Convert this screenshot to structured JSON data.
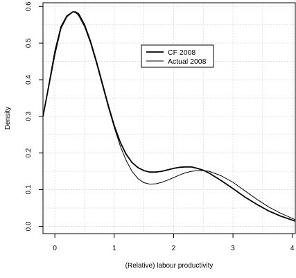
{
  "chart_data": {
    "type": "line",
    "title": "",
    "xlabel": "(Relative) labour productivity",
    "ylabel": "Density",
    "xlim": [
      -0.2,
      4.05
    ],
    "ylim": [
      -0.02,
      0.61
    ],
    "grid": true,
    "legend_position": "top-center",
    "x_ticks": [
      0,
      1,
      2,
      3,
      4
    ],
    "x_tick_labels": [
      "0",
      "1",
      "2",
      "3",
      "4"
    ],
    "y_ticks": [
      0.0,
      0.1,
      0.2,
      0.3,
      0.4,
      0.5,
      0.6
    ],
    "y_tick_labels": [
      "0.0",
      "0.1",
      "0.2",
      "0.3",
      "0.4",
      "0.5",
      "0.6"
    ],
    "series": [
      {
        "name": "CF 2008",
        "line_weight": "thick",
        "x": [
          -0.2,
          0.0,
          0.1,
          0.2,
          0.3,
          0.35,
          0.4,
          0.5,
          0.6,
          0.7,
          0.8,
          0.9,
          1.0,
          1.1,
          1.2,
          1.3,
          1.4,
          1.5,
          1.6,
          1.7,
          1.8,
          1.9,
          2.0,
          2.1,
          2.2,
          2.3,
          2.4,
          2.5,
          2.6,
          2.8,
          3.0,
          3.2,
          3.4,
          3.6,
          3.8,
          4.05
        ],
        "y": [
          0.3,
          0.47,
          0.54,
          0.572,
          0.585,
          0.585,
          0.58,
          0.55,
          0.505,
          0.45,
          0.39,
          0.33,
          0.275,
          0.23,
          0.197,
          0.174,
          0.16,
          0.152,
          0.148,
          0.148,
          0.15,
          0.154,
          0.158,
          0.161,
          0.162,
          0.162,
          0.158,
          0.153,
          0.145,
          0.125,
          0.103,
          0.08,
          0.06,
          0.042,
          0.028,
          0.014
        ]
      },
      {
        "name": "Actual 2008",
        "line_weight": "thin",
        "x": [
          -0.2,
          0.0,
          0.1,
          0.2,
          0.3,
          0.35,
          0.4,
          0.5,
          0.6,
          0.7,
          0.8,
          0.9,
          1.0,
          1.1,
          1.2,
          1.3,
          1.4,
          1.5,
          1.6,
          1.7,
          1.8,
          1.9,
          2.0,
          2.1,
          2.2,
          2.3,
          2.4,
          2.5,
          2.6,
          2.8,
          3.0,
          3.2,
          3.4,
          3.6,
          3.8,
          4.05
        ],
        "y": [
          0.3,
          0.48,
          0.545,
          0.575,
          0.585,
          0.583,
          0.575,
          0.545,
          0.5,
          0.445,
          0.385,
          0.325,
          0.27,
          0.22,
          0.18,
          0.15,
          0.13,
          0.119,
          0.115,
          0.116,
          0.12,
          0.126,
          0.133,
          0.14,
          0.146,
          0.15,
          0.152,
          0.152,
          0.15,
          0.138,
          0.12,
          0.097,
          0.074,
          0.053,
          0.036,
          0.018
        ]
      }
    ]
  }
}
